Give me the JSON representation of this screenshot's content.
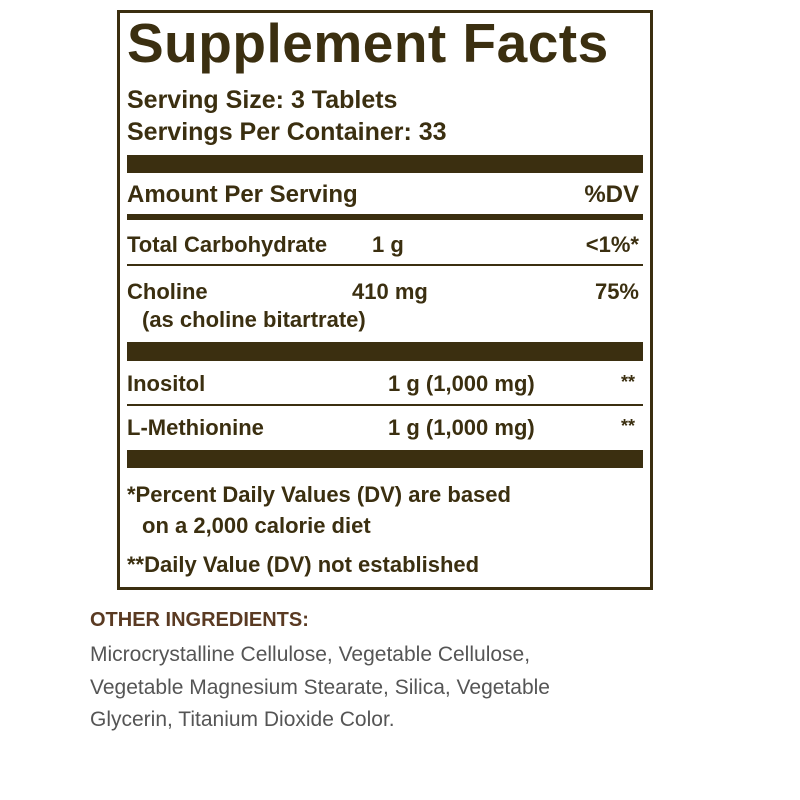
{
  "title": "Supplement Facts",
  "serving_size": "Serving Size: 3 Tablets",
  "servings_per_container": "Servings Per Container: 33",
  "header": {
    "amount": "Amount Per Serving",
    "dv": "%DV"
  },
  "rows": [
    {
      "name": "Total Carbohydrate",
      "amount": "1 g",
      "dv": "<1%*"
    },
    {
      "name": "Choline",
      "sub": "(as choline bitartrate)",
      "amount": "410 mg",
      "dv": "75%"
    },
    {
      "name": "Inositol",
      "amount": "1 g (1,000 mg)",
      "dv": "**"
    },
    {
      "name": "L-Methionine",
      "amount": "1 g (1,000 mg)",
      "dv": "**"
    }
  ],
  "footnotes": {
    "line1": "*Percent Daily Values (DV) are based",
    "line2": "on a 2,000 calorie diet",
    "line3": "**Daily Value (DV) not established"
  },
  "other_ingredients": {
    "heading": "OTHER INGREDIENTS:",
    "lines": [
      "Microcrystalline Cellulose, Vegetable Cellulose,",
      "Vegetable Magnesium Stearate, Silica, Vegetable",
      "Glycerin, Titanium Dioxide Color."
    ]
  },
  "colors": {
    "label_brown": "#3b2f10",
    "heading_brown": "#5a3a22",
    "body_gray": "#555555"
  }
}
